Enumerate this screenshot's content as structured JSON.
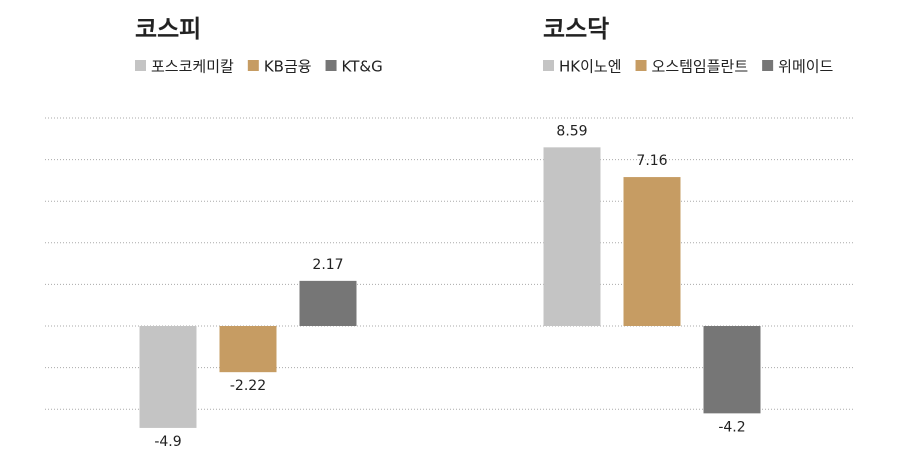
{
  "chart_data": [
    {
      "type": "bar",
      "title": "코스피",
      "categories": [
        "포스코케미칼",
        "KB금융",
        "KT&G"
      ],
      "values": [
        -4.9,
        -2.22,
        2.17
      ],
      "colors": [
        "#c4c4c4",
        "#c69c63",
        "#767676"
      ],
      "ylim": [
        -5,
        10
      ],
      "yticks": [
        -4,
        -2,
        0,
        2,
        4,
        6,
        8,
        10
      ],
      "grid": true
    },
    {
      "type": "bar",
      "title": "코스닥",
      "categories": [
        "HK이노엔",
        "오스템임플란트",
        "위메이드"
      ],
      "values": [
        8.59,
        7.16,
        -4.2
      ],
      "colors": [
        "#c4c4c4",
        "#c69c63",
        "#767676"
      ],
      "ylim": [
        -5,
        10
      ],
      "yticks": [
        -4,
        -2,
        0,
        2,
        4,
        6,
        8,
        10
      ],
      "grid": true
    }
  ]
}
